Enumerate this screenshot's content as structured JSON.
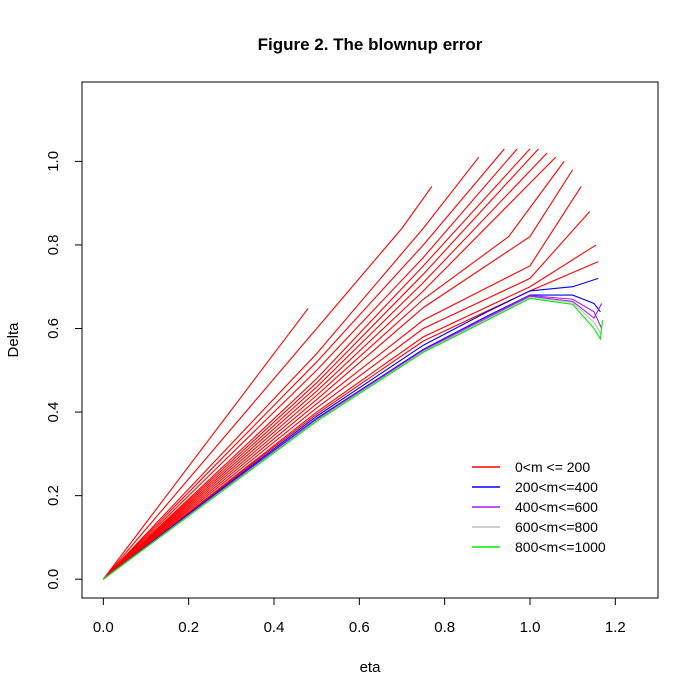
{
  "chart_data": {
    "type": "line",
    "title": "Figure 2. The blownup error",
    "xlabel": "eta",
    "ylabel": "Delta",
    "xlim": [
      -0.05,
      1.3
    ],
    "ylim": [
      -0.045,
      1.19
    ],
    "xticks": [
      0.0,
      0.2,
      0.4,
      0.6,
      0.8,
      1.0,
      1.2
    ],
    "xtick_labels": [
      "0.0",
      "0.2",
      "0.4",
      "0.6",
      "0.8",
      "1.0",
      "1.2"
    ],
    "yticks": [
      0.0,
      0.2,
      0.4,
      0.6,
      0.8,
      1.0
    ],
    "ytick_labels": [
      "0.0",
      "0.2",
      "0.4",
      "0.6",
      "0.8",
      "1.0"
    ],
    "grid": false,
    "legend_position": "bottom-right",
    "legend": [
      {
        "label": "0<m <= 200",
        "color": "#ff0000"
      },
      {
        "label": "200<m<=400",
        "color": "#0000ff"
      },
      {
        "label": "400<m<=600",
        "color": "#a020f0"
      },
      {
        "label": "600<m<=800",
        "color": "#bebebe"
      },
      {
        "label": "800<m<=1000",
        "color": "#00ee00"
      }
    ],
    "series": [
      {
        "group": 0,
        "color": "#ff0000",
        "points": [
          [
            0,
            0
          ],
          [
            0.48,
            0.648
          ]
        ]
      },
      {
        "group": 0,
        "color": "#ff0000",
        "points": [
          [
            0,
            0
          ],
          [
            0.25,
            0.3
          ],
          [
            0.5,
            0.6
          ],
          [
            0.7,
            0.84
          ],
          [
            0.77,
            0.94
          ]
        ]
      },
      {
        "group": 0,
        "color": "#ff0000",
        "points": [
          [
            0,
            0
          ],
          [
            0.25,
            0.27
          ],
          [
            0.5,
            0.54
          ],
          [
            0.75,
            0.84
          ],
          [
            0.88,
            1.01
          ]
        ]
      },
      {
        "group": 0,
        "color": "#ff0000",
        "points": [
          [
            0,
            0
          ],
          [
            0.25,
            0.26
          ],
          [
            0.5,
            0.52
          ],
          [
            0.75,
            0.8
          ],
          [
            0.94,
            1.03
          ]
        ]
      },
      {
        "group": 0,
        "color": "#ff0000",
        "points": [
          [
            0,
            0
          ],
          [
            0.25,
            0.25
          ],
          [
            0.5,
            0.5
          ],
          [
            0.75,
            0.77
          ],
          [
            0.97,
            1.03
          ]
        ]
      },
      {
        "group": 0,
        "color": "#ff0000",
        "points": [
          [
            0,
            0
          ],
          [
            0.25,
            0.24
          ],
          [
            0.5,
            0.48
          ],
          [
            0.75,
            0.75
          ],
          [
            1.0,
            1.03
          ]
        ]
      },
      {
        "group": 0,
        "color": "#ff0000",
        "points": [
          [
            0,
            0
          ],
          [
            0.25,
            0.235
          ],
          [
            0.5,
            0.47
          ],
          [
            0.75,
            0.73
          ],
          [
            1.02,
            1.03
          ]
        ]
      },
      {
        "group": 0,
        "color": "#ff0000",
        "points": [
          [
            0,
            0
          ],
          [
            0.25,
            0.23
          ],
          [
            0.5,
            0.46
          ],
          [
            0.75,
            0.71
          ],
          [
            1.04,
            1.02
          ]
        ]
      },
      {
        "group": 0,
        "color": "#ff0000",
        "points": [
          [
            0,
            0
          ],
          [
            0.25,
            0.225
          ],
          [
            0.5,
            0.45
          ],
          [
            0.75,
            0.69
          ],
          [
            1.06,
            1.01
          ]
        ]
      },
      {
        "group": 0,
        "color": "#ff0000",
        "points": [
          [
            0,
            0
          ],
          [
            0.25,
            0.22
          ],
          [
            0.5,
            0.44
          ],
          [
            0.75,
            0.67
          ],
          [
            0.95,
            0.82
          ],
          [
            1.08,
            1.0
          ]
        ]
      },
      {
        "group": 0,
        "color": "#ff0000",
        "points": [
          [
            0,
            0
          ],
          [
            0.25,
            0.215
          ],
          [
            0.5,
            0.43
          ],
          [
            0.75,
            0.65
          ],
          [
            1.0,
            0.82
          ],
          [
            1.1,
            0.98
          ]
        ]
      },
      {
        "group": 0,
        "color": "#ff0000",
        "points": [
          [
            0,
            0
          ],
          [
            0.25,
            0.21
          ],
          [
            0.5,
            0.42
          ],
          [
            0.75,
            0.62
          ],
          [
            1.0,
            0.75
          ],
          [
            1.12,
            0.94
          ]
        ]
      },
      {
        "group": 0,
        "color": "#ff0000",
        "points": [
          [
            0,
            0
          ],
          [
            0.25,
            0.205
          ],
          [
            0.5,
            0.41
          ],
          [
            0.75,
            0.6
          ],
          [
            1.0,
            0.72
          ],
          [
            1.14,
            0.88
          ]
        ]
      },
      {
        "group": 0,
        "color": "#ff0000",
        "points": [
          [
            0,
            0
          ],
          [
            0.25,
            0.2
          ],
          [
            0.5,
            0.4
          ],
          [
            0.75,
            0.58
          ],
          [
            1.0,
            0.7
          ],
          [
            1.155,
            0.8
          ]
        ]
      },
      {
        "group": 0,
        "color": "#ff0000",
        "points": [
          [
            0,
            0
          ],
          [
            0.25,
            0.198
          ],
          [
            0.5,
            0.395
          ],
          [
            0.75,
            0.57
          ],
          [
            1.0,
            0.69
          ],
          [
            1.16,
            0.76
          ]
        ]
      },
      {
        "group": 1,
        "color": "#0000ff",
        "points": [
          [
            0,
            0
          ],
          [
            0.25,
            0.195
          ],
          [
            0.5,
            0.39
          ],
          [
            0.75,
            0.56
          ],
          [
            0.9,
            0.64
          ],
          [
            1.0,
            0.69
          ],
          [
            1.1,
            0.7
          ],
          [
            1.16,
            0.72
          ]
        ]
      },
      {
        "group": 1,
        "color": "#0000ff",
        "points": [
          [
            0,
            0
          ],
          [
            0.25,
            0.193
          ],
          [
            0.5,
            0.385
          ],
          [
            0.75,
            0.55
          ],
          [
            0.9,
            0.63
          ],
          [
            1.0,
            0.68
          ],
          [
            1.1,
            0.68
          ],
          [
            1.15,
            0.66
          ],
          [
            1.165,
            0.64
          ]
        ]
      },
      {
        "group": 2,
        "color": "#a020f0",
        "points": [
          [
            0,
            0
          ],
          [
            0.25,
            0.192
          ],
          [
            0.5,
            0.383
          ],
          [
            0.75,
            0.548
          ],
          [
            0.9,
            0.628
          ],
          [
            1.0,
            0.679
          ],
          [
            1.1,
            0.67
          ],
          [
            1.15,
            0.64
          ],
          [
            1.168,
            0.6
          ]
        ]
      },
      {
        "group": 2,
        "color": "#a020f0",
        "points": [
          [
            0,
            0
          ],
          [
            0.25,
            0.191
          ],
          [
            0.5,
            0.381
          ],
          [
            0.75,
            0.546
          ],
          [
            0.9,
            0.625
          ],
          [
            1.0,
            0.677
          ],
          [
            1.1,
            0.665
          ],
          [
            1.15,
            0.625
          ],
          [
            1.168,
            0.66
          ]
        ]
      },
      {
        "group": 3,
        "color": "#bebebe",
        "points": [
          [
            0,
            0
          ],
          [
            0.25,
            0.19
          ],
          [
            0.5,
            0.38
          ],
          [
            0.75,
            0.545
          ],
          [
            0.9,
            0.623
          ],
          [
            1.0,
            0.675
          ],
          [
            1.1,
            0.662
          ],
          [
            1.15,
            0.615
          ],
          [
            1.168,
            0.585
          ]
        ]
      },
      {
        "group": 4,
        "color": "#00ee00",
        "points": [
          [
            0,
            0
          ],
          [
            0.25,
            0.189
          ],
          [
            0.5,
            0.378
          ],
          [
            0.75,
            0.543
          ],
          [
            0.9,
            0.62
          ],
          [
            1.0,
            0.672
          ],
          [
            1.1,
            0.658
          ],
          [
            1.15,
            0.6
          ],
          [
            1.165,
            0.575
          ],
          [
            1.17,
            0.62
          ]
        ]
      }
    ]
  }
}
